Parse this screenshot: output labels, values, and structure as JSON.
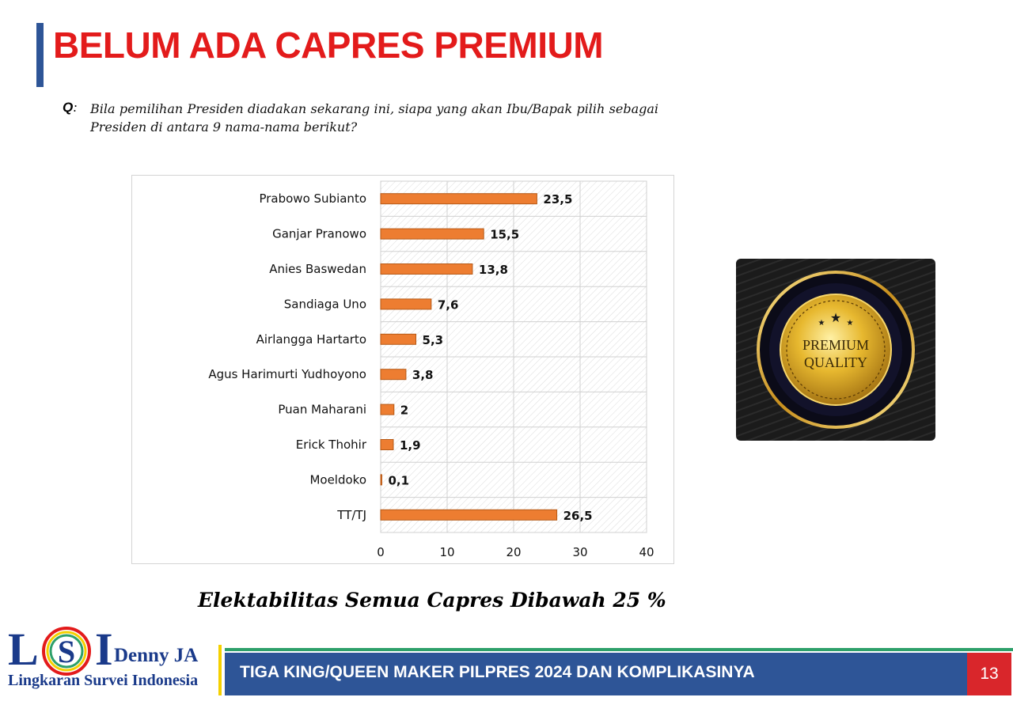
{
  "slide": {
    "title": "BELUM ADA CAPRES PREMIUM",
    "question_label": "Q",
    "question": "Bila pemilihan Presiden diadakan sekarang ini, siapa yang akan Ibu/Bapak pilih sebagai Presiden di antara 9 nama-nama berikut?",
    "caption": "Elektabilitas Semua Capres Dibawah 25 %",
    "footer_text": "TIGA KING/QUEEN MAKER PILPRES 2024 DAN KOMPLIKASINYA",
    "page_number": "13"
  },
  "badge": {
    "line1": "PREMIUM",
    "line2": "QUALITY",
    "icon": "premium-quality-seal-icon"
  },
  "logo": {
    "letter_l": "L",
    "letter_s": "S",
    "letter_i": "I",
    "brand": "Denny JA",
    "subtitle": "Lingkaran Survei Indonesia"
  },
  "colors": {
    "title": "#e31b1b",
    "bar": "#ed7d31",
    "footer": "#2e5597",
    "page_badge": "#d9262b",
    "accent_line": "#f5d000"
  },
  "chart_data": {
    "type": "bar",
    "orientation": "horizontal",
    "categories": [
      "Prabowo Subianto",
      "Ganjar Pranowo",
      "Anies Baswedan",
      "Sandiaga Uno",
      "Airlangga Hartarto",
      "Agus Harimurti Yudhoyono",
      "Puan Maharani",
      "Erick Thohir",
      "Moeldoko",
      "TT/TJ"
    ],
    "values": [
      23.5,
      15.5,
      13.8,
      7.6,
      5.3,
      3.8,
      2,
      1.9,
      0.1,
      26.5
    ],
    "value_labels": [
      "23,5",
      "15,5",
      "13,8",
      "7,6",
      "5,3",
      "3,8",
      "2",
      "1,9",
      "0,1",
      "26,5"
    ],
    "xlim": [
      0,
      40
    ],
    "xticks": [
      0,
      10,
      20,
      30,
      40
    ],
    "xtick_labels": [
      "0",
      "10",
      "20",
      "30",
      "40"
    ],
    "grid": true,
    "legend": "none"
  }
}
